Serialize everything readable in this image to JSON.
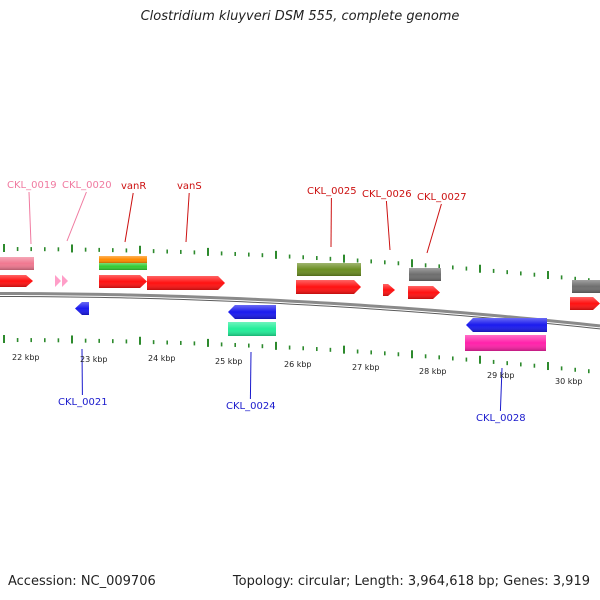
{
  "title": "Clostridium kluyveri DSM 555, complete genome",
  "footer": {
    "accession": "Accession: NC_009706",
    "summary": "Topology: circular; Length: 3,964,618 bp; Genes: 3,919"
  },
  "colors": {
    "backbone": "#8a8a8a",
    "tick": "#2d8a2d",
    "label_forward": "#cc1111",
    "label_reverse": "#1a1acc",
    "label_pseudo": "#f07aa0",
    "cds": "#ff1111",
    "gene_blue": "#1a1aee",
    "pink_feature": "#f07890",
    "pseudo_arrow": "#ff9ec8",
    "orange": "#ff8a00",
    "green": "#33cc33",
    "olive": "#6b8e23",
    "grey": "#6e6e6e",
    "teal": "#22ee99",
    "magenta": "#ff22aa"
  },
  "axis_labels": [
    "22 kbp",
    "23 kbp",
    "24 kbp",
    "25 kbp",
    "26 kbp",
    "27 kbp",
    "28 kbp",
    "29 kbp",
    "30 kbp"
  ],
  "gene_labels": [
    {
      "text": "CKL_0019",
      "strand": "pseudo"
    },
    {
      "text": "CKL_0020",
      "strand": "pseudo"
    },
    {
      "text": "vanR",
      "strand": "forward"
    },
    {
      "text": "vanS",
      "strand": "forward"
    },
    {
      "text": "CKL_0025",
      "strand": "forward"
    },
    {
      "text": "CKL_0026",
      "strand": "forward"
    },
    {
      "text": "CKL_0027",
      "strand": "forward"
    },
    {
      "text": "CKL_0021",
      "strand": "reverse"
    },
    {
      "text": "CKL_0024",
      "strand": "reverse"
    },
    {
      "text": "CKL_0028",
      "strand": "reverse"
    }
  ]
}
